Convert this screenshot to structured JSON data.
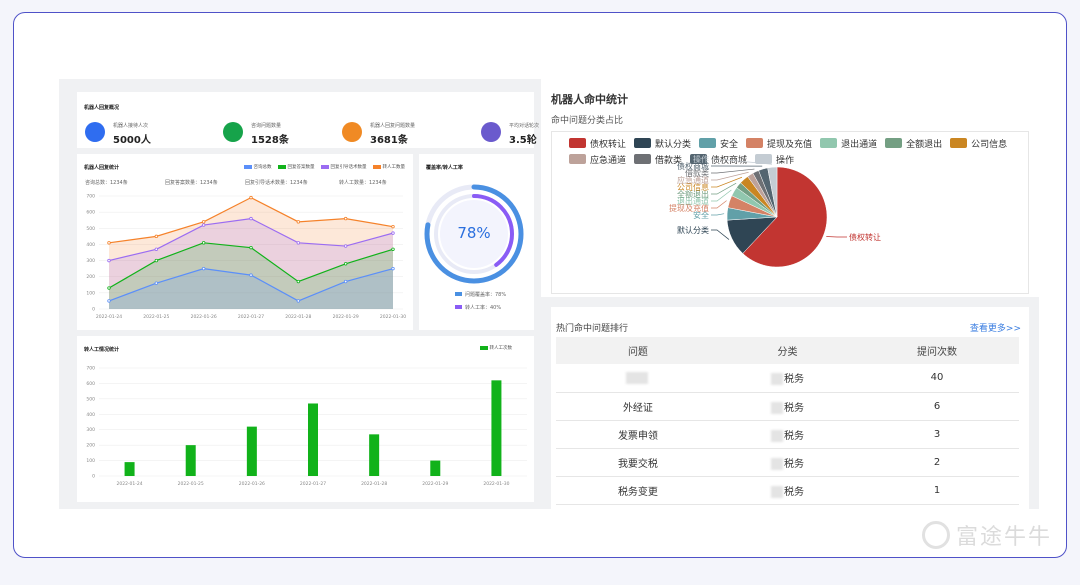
{
  "overview": {
    "title": "机器人回复概况",
    "items": [
      {
        "label": "机器人接待人次",
        "value": "5000人",
        "color": "#2f6df0"
      },
      {
        "label": "咨询问题数量",
        "value": "1528条",
        "color": "#16a34a"
      },
      {
        "label": "机器人回复问题数量",
        "value": "3681条",
        "color": "#f08a24"
      },
      {
        "label": "平均对话轮次",
        "value": "3.5轮",
        "color": "#6a5acd"
      }
    ]
  },
  "reply_stats": {
    "title": "机器人回复统计",
    "summary": [
      "咨询总数：1234条",
      "回复答案数量：1234条",
      "回复引导话术数量：1234条",
      "转人工数量：1234条"
    ],
    "legend": [
      {
        "name": "咨询总数",
        "color": "#5b8ff9"
      },
      {
        "name": "回复答案数量",
        "color": "#11b21a"
      },
      {
        "name": "回复引导话术数量",
        "color": "#9b6cf2"
      },
      {
        "name": "转人工数量",
        "color": "#f5822a"
      }
    ]
  },
  "coverage": {
    "title": "覆盖率/转人工率",
    "percent": "78%",
    "coverage_fraction": 0.78,
    "transfer_fraction": 0.4,
    "legend": [
      "问题覆盖率：78%",
      "转人工率：40%"
    ]
  },
  "transfer_stats": {
    "title": "转人工情况统计",
    "legend": "转人工次数"
  },
  "hit_stats": {
    "title": "机器人命中统计",
    "subtitle": "命中问题分类占比"
  },
  "ranking": {
    "title": "热门命中问题排行",
    "more_link": "查看更多>>",
    "headers": [
      "问题",
      "分类",
      "提问次数"
    ],
    "rows": [
      {
        "question": "",
        "category": "税务",
        "count": "40"
      },
      {
        "question": "外经证",
        "category": "税务",
        "count": "6"
      },
      {
        "question": "发票申领",
        "category": "税务",
        "count": "3"
      },
      {
        "question": "我要交税",
        "category": "税务",
        "count": "2"
      },
      {
        "question": "税务变更",
        "category": "税务",
        "count": "1"
      }
    ]
  },
  "watermark": "富途牛牛",
  "chart_data": [
    {
      "type": "area",
      "title": "机器人回复统计",
      "x": [
        "2022-01-24",
        "2022-01-25",
        "2022-01-26",
        "2022-01-27",
        "2022-01-28",
        "2022-01-29",
        "2022-01-30"
      ],
      "ylim": [
        0,
        700
      ],
      "yticks": [
        0,
        100,
        200,
        300,
        400,
        500,
        600,
        700
      ],
      "series": [
        {
          "name": "转人工数量",
          "color": "#f5822a",
          "values": [
            410,
            450,
            540,
            690,
            540,
            560,
            510
          ]
        },
        {
          "name": "回复引导话术数量",
          "color": "#9b6cf2",
          "values": [
            300,
            370,
            520,
            560,
            410,
            390,
            470
          ]
        },
        {
          "name": "回复答案数量",
          "color": "#11b21a",
          "values": [
            130,
            300,
            410,
            380,
            170,
            280,
            370
          ]
        },
        {
          "name": "咨询总数",
          "color": "#5b8ff9",
          "values": [
            50,
            160,
            250,
            210,
            50,
            170,
            250
          ]
        }
      ]
    },
    {
      "type": "bar",
      "title": "转人工情况统计",
      "categories": [
        "2022-01-24",
        "2022-01-25",
        "2022-01-26",
        "2022-01-27",
        "2022-01-28",
        "2022-01-29",
        "2022-01-30"
      ],
      "ylim": [
        0,
        700
      ],
      "yticks": [
        0,
        100,
        200,
        300,
        400,
        500,
        600,
        700
      ],
      "series": [
        {
          "name": "转人工次数",
          "color": "#11b21a",
          "values": [
            90,
            200,
            320,
            470,
            270,
            100,
            620
          ]
        }
      ]
    },
    {
      "type": "pie",
      "title": "命中问题分类占比",
      "slices": [
        {
          "name": "债权转让",
          "value": 62,
          "color": "#c23531"
        },
        {
          "name": "默认分类",
          "value": 12,
          "color": "#2f4554"
        },
        {
          "name": "安全",
          "value": 4,
          "color": "#61a0a8"
        },
        {
          "name": "提现及充值",
          "value": 4,
          "color": "#d48265"
        },
        {
          "name": "退出通道",
          "value": 3,
          "color": "#91c7ae"
        },
        {
          "name": "全额退出",
          "value": 2,
          "color": "#749f83"
        },
        {
          "name": "公司信息",
          "value": 3,
          "color": "#ca8622"
        },
        {
          "name": "应急通道",
          "value": 2,
          "color": "#bda29a"
        },
        {
          "name": "借款类",
          "value": 2,
          "color": "#6e7074"
        },
        {
          "name": "债权商城",
          "value": 3,
          "color": "#546570"
        },
        {
          "name": "操作",
          "value": 3,
          "color": "#c4ccd3"
        }
      ]
    }
  ]
}
